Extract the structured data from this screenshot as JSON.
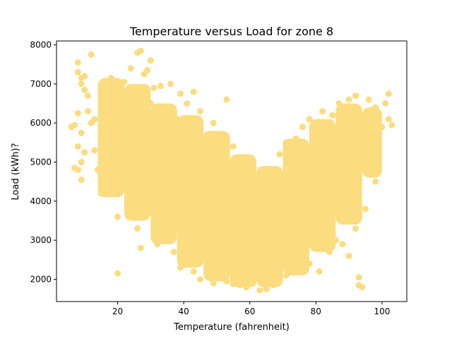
{
  "chart_data": {
    "type": "scatter",
    "title": "Temperature versus Load for zone 8",
    "xlabel": "Temperature (fahrenheit)",
    "ylabel": "Load (kWh)?",
    "xlim": [
      1.5,
      107.5
    ],
    "ylim": [
      1430,
      8100
    ],
    "xticks": [
      20,
      40,
      60,
      80,
      100
    ],
    "yticks": [
      2000,
      3000,
      4000,
      5000,
      6000,
      7000,
      8000
    ],
    "grid": false,
    "legend": "none",
    "marker_color": "#fbdc7f",
    "series": [
      {
        "points": [
          [
            6,
            5900
          ],
          [
            7,
            5950
          ],
          [
            7,
            4850
          ],
          [
            8,
            4800
          ],
          [
            8,
            5400
          ],
          [
            9,
            4550
          ],
          [
            9,
            5000
          ],
          [
            8,
            6250
          ],
          [
            9,
            5750
          ],
          [
            10,
            5250
          ],
          [
            8,
            7550
          ],
          [
            9,
            7000
          ],
          [
            8,
            7300
          ],
          [
            9,
            7150
          ],
          [
            10,
            6850
          ],
          [
            10,
            7200
          ],
          [
            11,
            6300
          ],
          [
            11,
            6700
          ],
          [
            12,
            7750
          ],
          [
            12,
            6000
          ],
          [
            13,
            6100
          ],
          [
            13,
            5300
          ],
          [
            14,
            4800
          ],
          [
            15,
            5800
          ],
          [
            15,
            4200
          ],
          [
            16,
            6300
          ],
          [
            16,
            5100
          ],
          [
            17,
            6600
          ],
          [
            17,
            4500
          ],
          [
            18,
            7150
          ],
          [
            18,
            5900
          ],
          [
            19,
            5400
          ],
          [
            19,
            4700
          ],
          [
            20,
            6800
          ],
          [
            20,
            3600
          ],
          [
            20,
            2150
          ],
          [
            21,
            6200
          ],
          [
            21,
            5200
          ],
          [
            22,
            7050
          ],
          [
            22,
            4300
          ],
          [
            23,
            6500
          ],
          [
            23,
            4800
          ],
          [
            24,
            7400
          ],
          [
            24,
            5800
          ],
          [
            25,
            3900
          ],
          [
            25,
            6900
          ],
          [
            26,
            7800
          ],
          [
            26,
            3300
          ],
          [
            27,
            7850
          ],
          [
            27,
            2800
          ],
          [
            28,
            7250
          ],
          [
            28,
            5500
          ],
          [
            29,
            7350
          ],
          [
            29,
            4100
          ],
          [
            30,
            7600
          ],
          [
            30,
            6500
          ],
          [
            31,
            6900
          ],
          [
            31,
            3200
          ],
          [
            32,
            5700
          ],
          [
            32,
            2900
          ],
          [
            33,
            6950
          ],
          [
            34,
            4800
          ],
          [
            35,
            6400
          ],
          [
            35,
            3000
          ],
          [
            36,
            7000
          ],
          [
            36,
            5400
          ],
          [
            37,
            2700
          ],
          [
            38,
            6100
          ],
          [
            38,
            3800
          ],
          [
            39,
            6750
          ],
          [
            39,
            2300
          ],
          [
            40,
            5900
          ],
          [
            40,
            4400
          ],
          [
            41,
            6500
          ],
          [
            41,
            2600
          ],
          [
            42,
            4600
          ],
          [
            42,
            3200
          ],
          [
            43,
            6800
          ],
          [
            43,
            2200
          ],
          [
            44,
            5300
          ],
          [
            45,
            6300
          ],
          [
            45,
            2000
          ],
          [
            46,
            4900
          ],
          [
            47,
            5700
          ],
          [
            47,
            2100
          ],
          [
            48,
            3600
          ],
          [
            49,
            6000
          ],
          [
            49,
            1900
          ],
          [
            50,
            4500
          ],
          [
            51,
            5600
          ],
          [
            51,
            2050
          ],
          [
            52,
            3400
          ],
          [
            53,
            6600
          ],
          [
            53,
            1950
          ],
          [
            54,
            4200
          ],
          [
            55,
            5400
          ],
          [
            55,
            1880
          ],
          [
            56,
            3000
          ],
          [
            57,
            4900
          ],
          [
            57,
            1850
          ],
          [
            58,
            2600
          ],
          [
            59,
            4100
          ],
          [
            59,
            1800
          ],
          [
            60,
            3500
          ],
          [
            61,
            1900
          ],
          [
            62,
            2400
          ],
          [
            62,
            4000
          ],
          [
            63,
            1720
          ],
          [
            64,
            3300
          ],
          [
            65,
            1750
          ],
          [
            65,
            4700
          ],
          [
            66,
            2500
          ],
          [
            67,
            1850
          ],
          [
            67,
            3700
          ],
          [
            68,
            2200
          ],
          [
            69,
            5200
          ],
          [
            69,
            1950
          ],
          [
            70,
            3000
          ],
          [
            71,
            2100
          ],
          [
            71,
            5500
          ],
          [
            72,
            4200
          ],
          [
            73,
            2300
          ],
          [
            74,
            5600
          ],
          [
            74,
            3300
          ],
          [
            75,
            2500
          ],
          [
            76,
            5900
          ],
          [
            77,
            3800
          ],
          [
            78,
            2400
          ],
          [
            78,
            6100
          ],
          [
            79,
            4500
          ],
          [
            80,
            2800
          ],
          [
            80,
            5800
          ],
          [
            81,
            2200
          ],
          [
            82,
            3400
          ],
          [
            82,
            6300
          ],
          [
            83,
            5000
          ],
          [
            84,
            2700
          ],
          [
            85,
            6200
          ],
          [
            85,
            3900
          ],
          [
            86,
            3000
          ],
          [
            87,
            6500
          ],
          [
            87,
            4600
          ],
          [
            88,
            2900
          ],
          [
            89,
            6300
          ],
          [
            89,
            3500
          ],
          [
            90,
            6600
          ],
          [
            90,
            2600
          ],
          [
            91,
            4800
          ],
          [
            92,
            6700
          ],
          [
            92,
            3300
          ],
          [
            93,
            2050
          ],
          [
            93,
            1850
          ],
          [
            94,
            1800
          ],
          [
            94,
            6200
          ],
          [
            95,
            3800
          ],
          [
            96,
            6600
          ],
          [
            96,
            4700
          ],
          [
            97,
            5500
          ],
          [
            98,
            6400
          ],
          [
            98,
            4500
          ],
          [
            99,
            6000
          ],
          [
            100,
            5900
          ],
          [
            101,
            6500
          ],
          [
            102,
            6750
          ],
          [
            102,
            6100
          ],
          [
            103,
            5950
          ]
        ]
      }
    ],
    "bands": [
      {
        "x": [
          14,
          22
        ],
        "lo": 4100,
        "hi": 7150
      },
      {
        "x": [
          22,
          30
        ],
        "lo": 3500,
        "hi": 7000
      },
      {
        "x": [
          30,
          38
        ],
        "lo": 2900,
        "hi": 6500
      },
      {
        "x": [
          38,
          46
        ],
        "lo": 2300,
        "hi": 6200
      },
      {
        "x": [
          46,
          54
        ],
        "lo": 1950,
        "hi": 5800
      },
      {
        "x": [
          54,
          62
        ],
        "lo": 1800,
        "hi": 5200
      },
      {
        "x": [
          62,
          70
        ],
        "lo": 1800,
        "hi": 4900
      },
      {
        "x": [
          70,
          78
        ],
        "lo": 2100,
        "hi": 5600
      },
      {
        "x": [
          78,
          86
        ],
        "lo": 2700,
        "hi": 6100
      },
      {
        "x": [
          86,
          94
        ],
        "lo": 3400,
        "hi": 6500
      },
      {
        "x": [
          94,
          100
        ],
        "lo": 4600,
        "hi": 6400
      }
    ]
  }
}
